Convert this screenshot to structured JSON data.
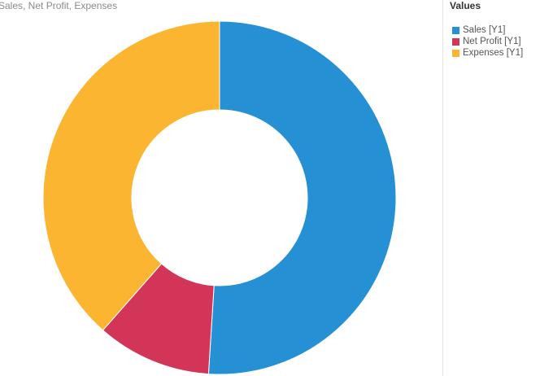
{
  "title": "Sales, Net Profit, Expenses",
  "legend": {
    "title": "Values",
    "items": [
      {
        "label": "Sales [Y1]",
        "color": "#2591d4"
      },
      {
        "label": "Net Profit [Y1]",
        "color": "#d23557"
      },
      {
        "label": "Expenses [Y1]",
        "color": "#fbb530"
      }
    ]
  },
  "chart_data": {
    "type": "pie",
    "variant": "donut",
    "title": "Sales, Net Profit, Expenses",
    "categories": [
      "Sales [Y1]",
      "Net Profit [Y1]",
      "Expenses [Y1]"
    ],
    "values": [
      51,
      10.5,
      38.5
    ],
    "colors": [
      "#2591d4",
      "#d23557",
      "#fbb530"
    ],
    "legend_title": "Values",
    "legend_position": "right"
  }
}
